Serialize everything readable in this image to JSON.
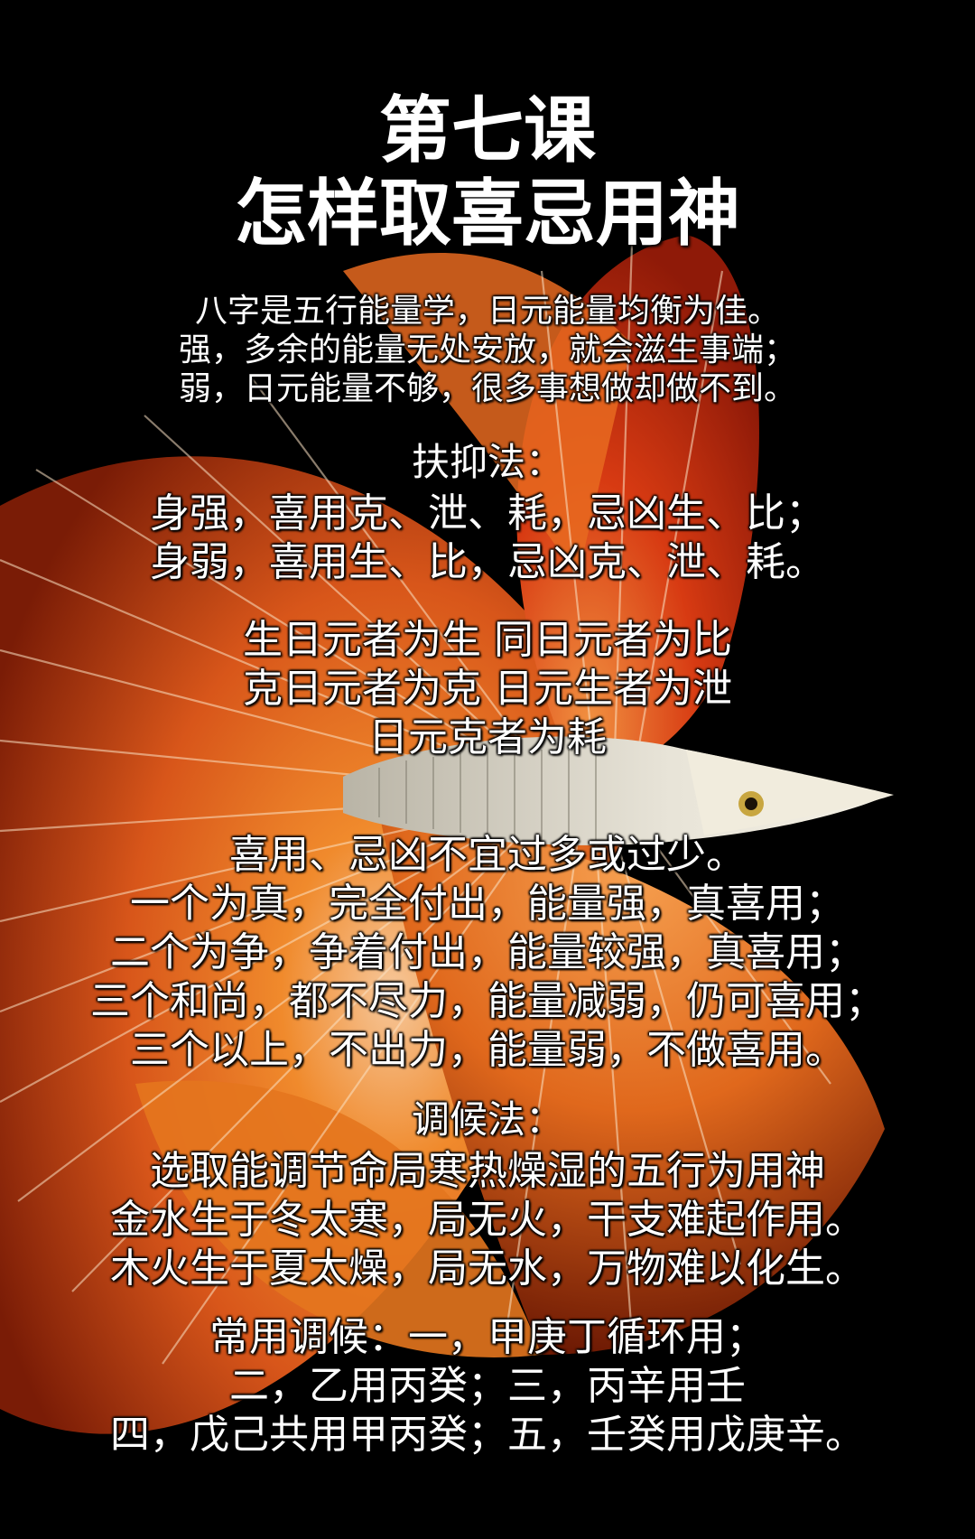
{
  "title": {
    "line1": "第七课",
    "line2": "怎样取喜忌用神"
  },
  "intro": [
    "八字是五行能量学，日元能量均衡为佳。",
    "强，多余的能量无处安放，就会滋生事端；",
    "弱，日元能量不够，很多事想做却做不到。"
  ],
  "fuyi": {
    "heading": "扶抑法：",
    "lines": [
      "身强，喜用克、泄、耗，忌凶生、比；",
      "身弱，喜用生、比，忌凶克、泄、耗。"
    ]
  },
  "definitions": [
    "生日元者为生  同日元者为比",
    "克日元者为克  日元生者为泄",
    "日元克者为耗"
  ],
  "counts": [
    "喜用、忌凶不宜过多或过少。",
    "一个为真，完全付出，能量强，真喜用；",
    "二个为争，争着付出，能量较强，真喜用；",
    "三个和尚，都不尽力，能量减弱，仍可喜用；",
    "三个以上，不出力，能量弱，不做喜用。"
  ],
  "tiaohou": {
    "heading": "调候法：",
    "lines": [
      "选取能调节命局寒热燥湿的五行为用神",
      "金水生于冬太寒，局无火，干支难起作用。",
      "木火生于夏太燥，局无水，万物难以化生。"
    ]
  },
  "common": [
    "常用调候：一，甲庚丁循环用；",
    "二，乙用丙癸；三，丙辛用壬",
    "四，戊己共用甲丙癸；五，壬癸用戊庚辛。"
  ],
  "colors": {
    "background": "#000000",
    "fin_orange": "#e8681c",
    "fin_red": "#c8280e",
    "text": "#ffffff"
  }
}
